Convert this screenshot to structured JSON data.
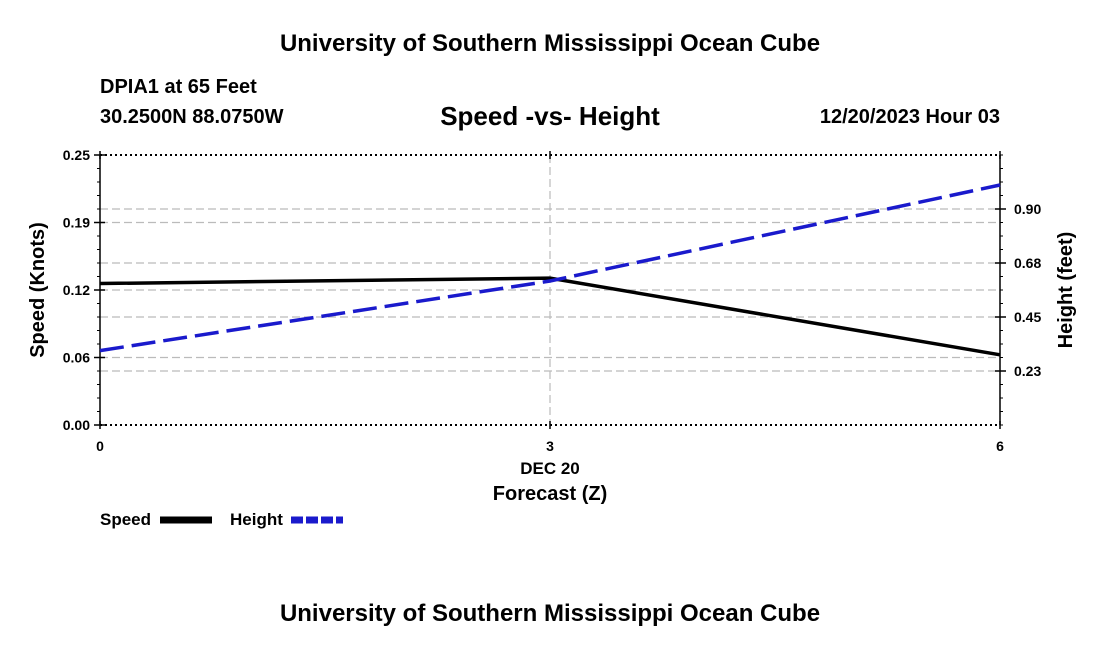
{
  "header": {
    "top_title": "University of Southern Mississippi Ocean Cube",
    "station": "DPIA1 at 65 Feet",
    "coords": "30.2500N  88.0750W",
    "chart_title": "Speed -vs- Height",
    "datetime": "12/20/2023 Hour 03"
  },
  "footer": {
    "bottom_title": "University of Southern Mississippi Ocean Cube"
  },
  "colors": {
    "speed": "#000000",
    "height": "#1a1acc",
    "grid": "#bbbbbb"
  },
  "chart_data": {
    "type": "line",
    "title": "Speed -vs- Height",
    "xlabel": "Forecast (Z)",
    "xlabel_date": "DEC 20",
    "x": [
      0,
      3,
      6
    ],
    "x_tick_labels": [
      "0",
      "3",
      "6"
    ],
    "xlim": [
      0,
      6
    ],
    "y_left": {
      "label": "Speed (Knots)",
      "lim": [
        0,
        0.25
      ],
      "ticks": [
        0.0,
        0.0625,
        0.125,
        0.1875,
        0.25
      ],
      "tick_labels": [
        "0.00",
        "0.06",
        "0.12",
        "0.19",
        "0.25"
      ]
    },
    "y_right": {
      "label": "Height (feet)",
      "lim": [
        0.0,
        1.125
      ],
      "ticks": [
        0.225,
        0.45,
        0.675,
        0.9
      ],
      "tick_labels": [
        "0.23",
        "0.45",
        "0.68",
        "0.90"
      ]
    },
    "series": [
      {
        "name": "Speed",
        "axis": "left",
        "style": "solid",
        "values": [
          0.131,
          0.136,
          0.065
        ]
      },
      {
        "name": "Height",
        "axis": "right",
        "style": "dashed",
        "values": [
          0.31,
          0.6,
          1.0
        ]
      }
    ],
    "legend": {
      "position": "bottom-left",
      "items": [
        "Speed",
        "Height"
      ]
    },
    "grid": true
  }
}
